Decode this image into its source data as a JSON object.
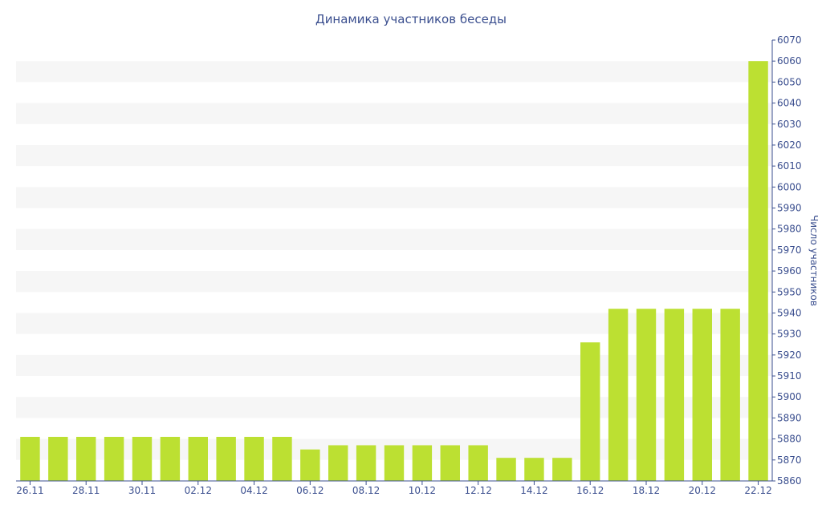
{
  "chart_data": {
    "type": "bar",
    "title": "Динамика участников беседы",
    "xlabel": "",
    "ylabel": "Число участников",
    "ylim": [
      5860,
      6070
    ],
    "ytick_step": 10,
    "grid": "alternating horizontal bands",
    "legend": "none",
    "colors": {
      "bar": "#bce032",
      "text": "#3b4f8f",
      "band": "#f6f6f6"
    },
    "categories": [
      "26.11",
      "27.11",
      "28.11",
      "29.11",
      "30.11",
      "01.12",
      "02.12",
      "03.12",
      "04.12",
      "05.12",
      "06.12",
      "07.12",
      "08.12",
      "09.12",
      "10.12",
      "11.12",
      "12.12",
      "13.12",
      "14.12",
      "15.12",
      "16.12",
      "17.12",
      "18.12",
      "19.12",
      "20.12",
      "21.12",
      "22.12"
    ],
    "x_tick_labels": [
      "26.11",
      "28.11",
      "30.11",
      "02.12",
      "04.12",
      "06.12",
      "08.12",
      "10.12",
      "12.12",
      "14.12",
      "16.12",
      "18.12",
      "20.12",
      "22.12"
    ],
    "values": [
      5881,
      5881,
      5881,
      5881,
      5881,
      5881,
      5881,
      5881,
      5881,
      5881,
      5875,
      5877,
      5877,
      5877,
      5877,
      5877,
      5877,
      5871,
      5871,
      5871,
      5926,
      5942,
      5942,
      5942,
      5942,
      5942,
      6060
    ]
  }
}
